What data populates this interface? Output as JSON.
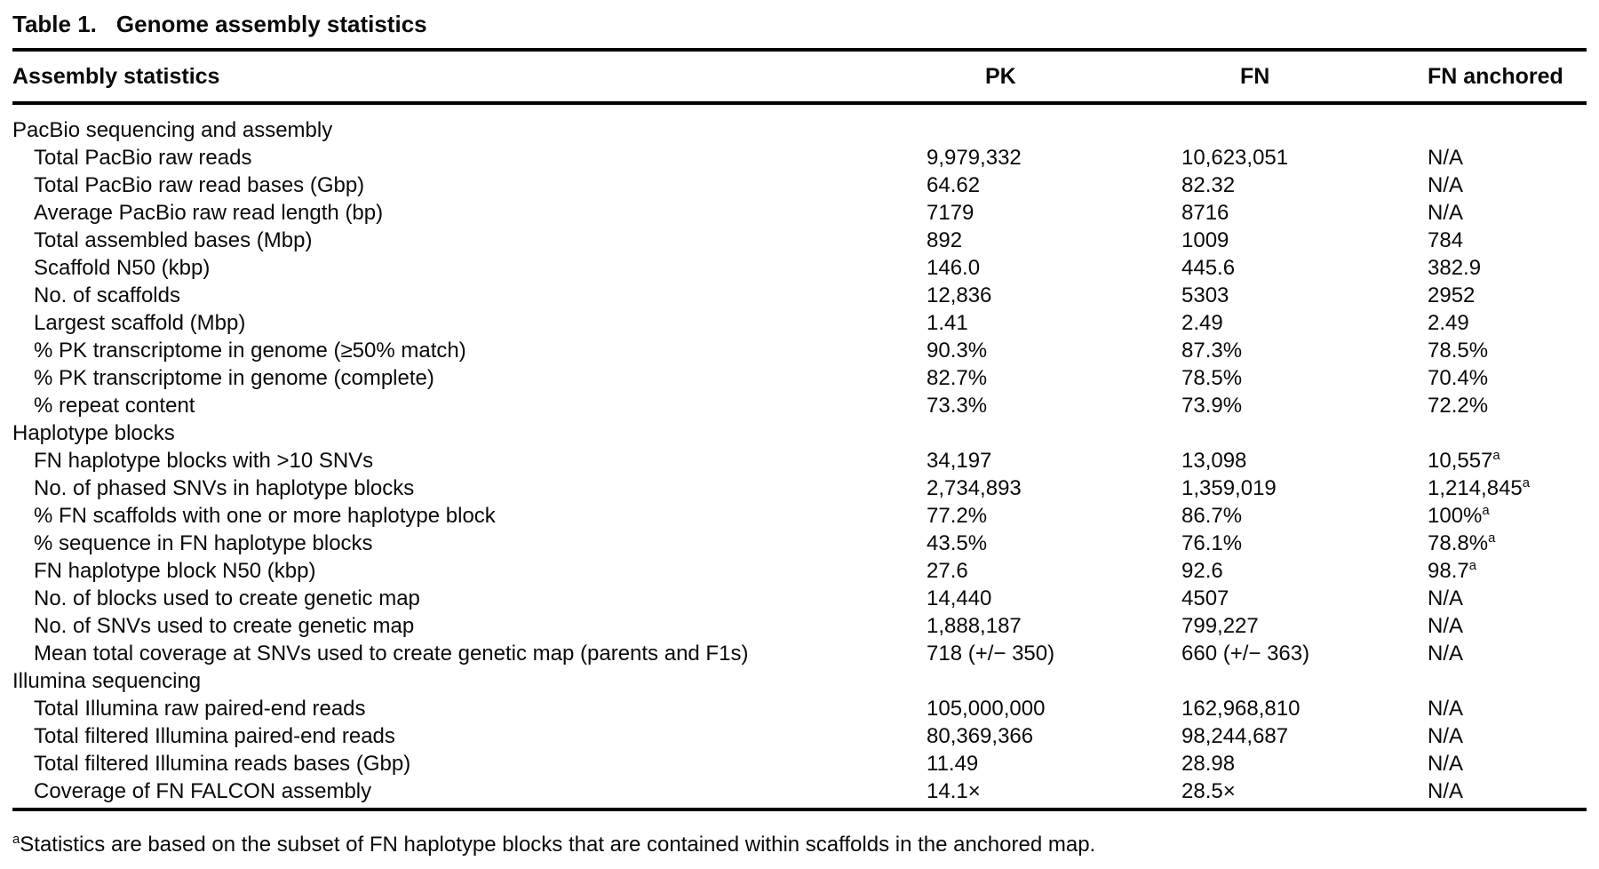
{
  "title": {
    "label": "Table 1.",
    "caption": "Genome assembly statistics"
  },
  "table": {
    "columns": {
      "c0": "Assembly statistics",
      "c1": "PK",
      "c2": "FN",
      "c3": "FN anchored"
    },
    "rows": [
      {
        "type": "section",
        "label": "PacBio sequencing and assembly"
      },
      {
        "type": "data",
        "label": "Total PacBio raw reads",
        "values": [
          {
            "text": "9,979,332"
          },
          {
            "text": "10,623,051"
          },
          {
            "text": "N/A"
          }
        ]
      },
      {
        "type": "data",
        "label": "Total PacBio raw read bases (Gbp)",
        "values": [
          {
            "text": "64.62"
          },
          {
            "text": "82.32"
          },
          {
            "text": "N/A"
          }
        ]
      },
      {
        "type": "data",
        "label": "Average PacBio raw read length (bp)",
        "values": [
          {
            "text": "7179"
          },
          {
            "text": "8716"
          },
          {
            "text": "N/A"
          }
        ]
      },
      {
        "type": "data",
        "label": "Total assembled bases (Mbp)",
        "values": [
          {
            "text": "892"
          },
          {
            "text": "1009"
          },
          {
            "text": "784"
          }
        ]
      },
      {
        "type": "data",
        "label": "Scaffold N50 (kbp)",
        "values": [
          {
            "text": "146.0"
          },
          {
            "text": "445.6"
          },
          {
            "text": "382.9"
          }
        ]
      },
      {
        "type": "data",
        "label": "No. of scaffolds",
        "values": [
          {
            "text": "12,836"
          },
          {
            "text": "5303"
          },
          {
            "text": "2952"
          }
        ]
      },
      {
        "type": "data",
        "label": "Largest scaffold (Mbp)",
        "values": [
          {
            "text": "1.41"
          },
          {
            "text": "2.49"
          },
          {
            "text": "2.49"
          }
        ]
      },
      {
        "type": "data",
        "label": "% PK transcriptome in genome (≥50% match)",
        "values": [
          {
            "text": "90.3%"
          },
          {
            "text": "87.3%"
          },
          {
            "text": "78.5%"
          }
        ]
      },
      {
        "type": "data",
        "label": "% PK transcriptome in genome (complete)",
        "values": [
          {
            "text": "82.7%"
          },
          {
            "text": "78.5%"
          },
          {
            "text": "70.4%"
          }
        ]
      },
      {
        "type": "data",
        "label": "% repeat content",
        "values": [
          {
            "text": "73.3%"
          },
          {
            "text": "73.9%"
          },
          {
            "text": "72.2%"
          }
        ]
      },
      {
        "type": "section",
        "label": "Haplotype blocks"
      },
      {
        "type": "data",
        "label": "FN haplotype blocks with >10 SNVs",
        "values": [
          {
            "text": "34,197"
          },
          {
            "text": "13,098"
          },
          {
            "text": "10,557",
            "sup": "a"
          }
        ]
      },
      {
        "type": "data",
        "label": "No. of phased SNVs in haplotype blocks",
        "values": [
          {
            "text": "2,734,893"
          },
          {
            "text": "1,359,019"
          },
          {
            "text": "1,214,845",
            "sup": "a"
          }
        ]
      },
      {
        "type": "data",
        "label": "% FN scaffolds with one or more haplotype block",
        "values": [
          {
            "text": "77.2%"
          },
          {
            "text": "86.7%"
          },
          {
            "text": "100%",
            "sup": "a"
          }
        ]
      },
      {
        "type": "data",
        "label": "% sequence in FN haplotype blocks",
        "values": [
          {
            "text": "43.5%"
          },
          {
            "text": "76.1%"
          },
          {
            "text": "78.8%",
            "sup": "a"
          }
        ]
      },
      {
        "type": "data",
        "label": "FN haplotype block N50 (kbp)",
        "values": [
          {
            "text": "27.6"
          },
          {
            "text": "92.6"
          },
          {
            "text": "98.7",
            "sup": "a"
          }
        ]
      },
      {
        "type": "data",
        "label": "No. of blocks used to create genetic map",
        "values": [
          {
            "text": "14,440"
          },
          {
            "text": "4507"
          },
          {
            "text": "N/A"
          }
        ]
      },
      {
        "type": "data",
        "label": "No. of SNVs used to create genetic map",
        "values": [
          {
            "text": "1,888,187"
          },
          {
            "text": "799,227"
          },
          {
            "text": "N/A"
          }
        ]
      },
      {
        "type": "data",
        "label": "Mean total coverage at SNVs used to create genetic map (parents and F1s)",
        "values": [
          {
            "text": "718 (+/− 350)"
          },
          {
            "text": "660 (+/− 363)"
          },
          {
            "text": "N/A"
          }
        ]
      },
      {
        "type": "section",
        "label": "Illumina sequencing"
      },
      {
        "type": "data",
        "label": "Total Illumina raw paired-end reads",
        "values": [
          {
            "text": "105,000,000"
          },
          {
            "text": "162,968,810"
          },
          {
            "text": "N/A"
          }
        ]
      },
      {
        "type": "data",
        "label": "Total filtered Illumina paired-end reads",
        "values": [
          {
            "text": "80,369,366"
          },
          {
            "text": "98,244,687"
          },
          {
            "text": "N/A"
          }
        ]
      },
      {
        "type": "data",
        "label": "Total filtered Illumina reads bases (Gbp)",
        "values": [
          {
            "text": "11.49"
          },
          {
            "text": "28.98"
          },
          {
            "text": "N/A"
          }
        ]
      },
      {
        "type": "data",
        "label": "Coverage of FN FALCON assembly",
        "values": [
          {
            "text": "14.1×"
          },
          {
            "text": "28.5×"
          },
          {
            "text": "N/A"
          }
        ]
      }
    ]
  },
  "footnote": {
    "sup": "a",
    "text": "Statistics are based on the subset of FN haplotype blocks that are contained within scaffolds in the anchored map."
  }
}
